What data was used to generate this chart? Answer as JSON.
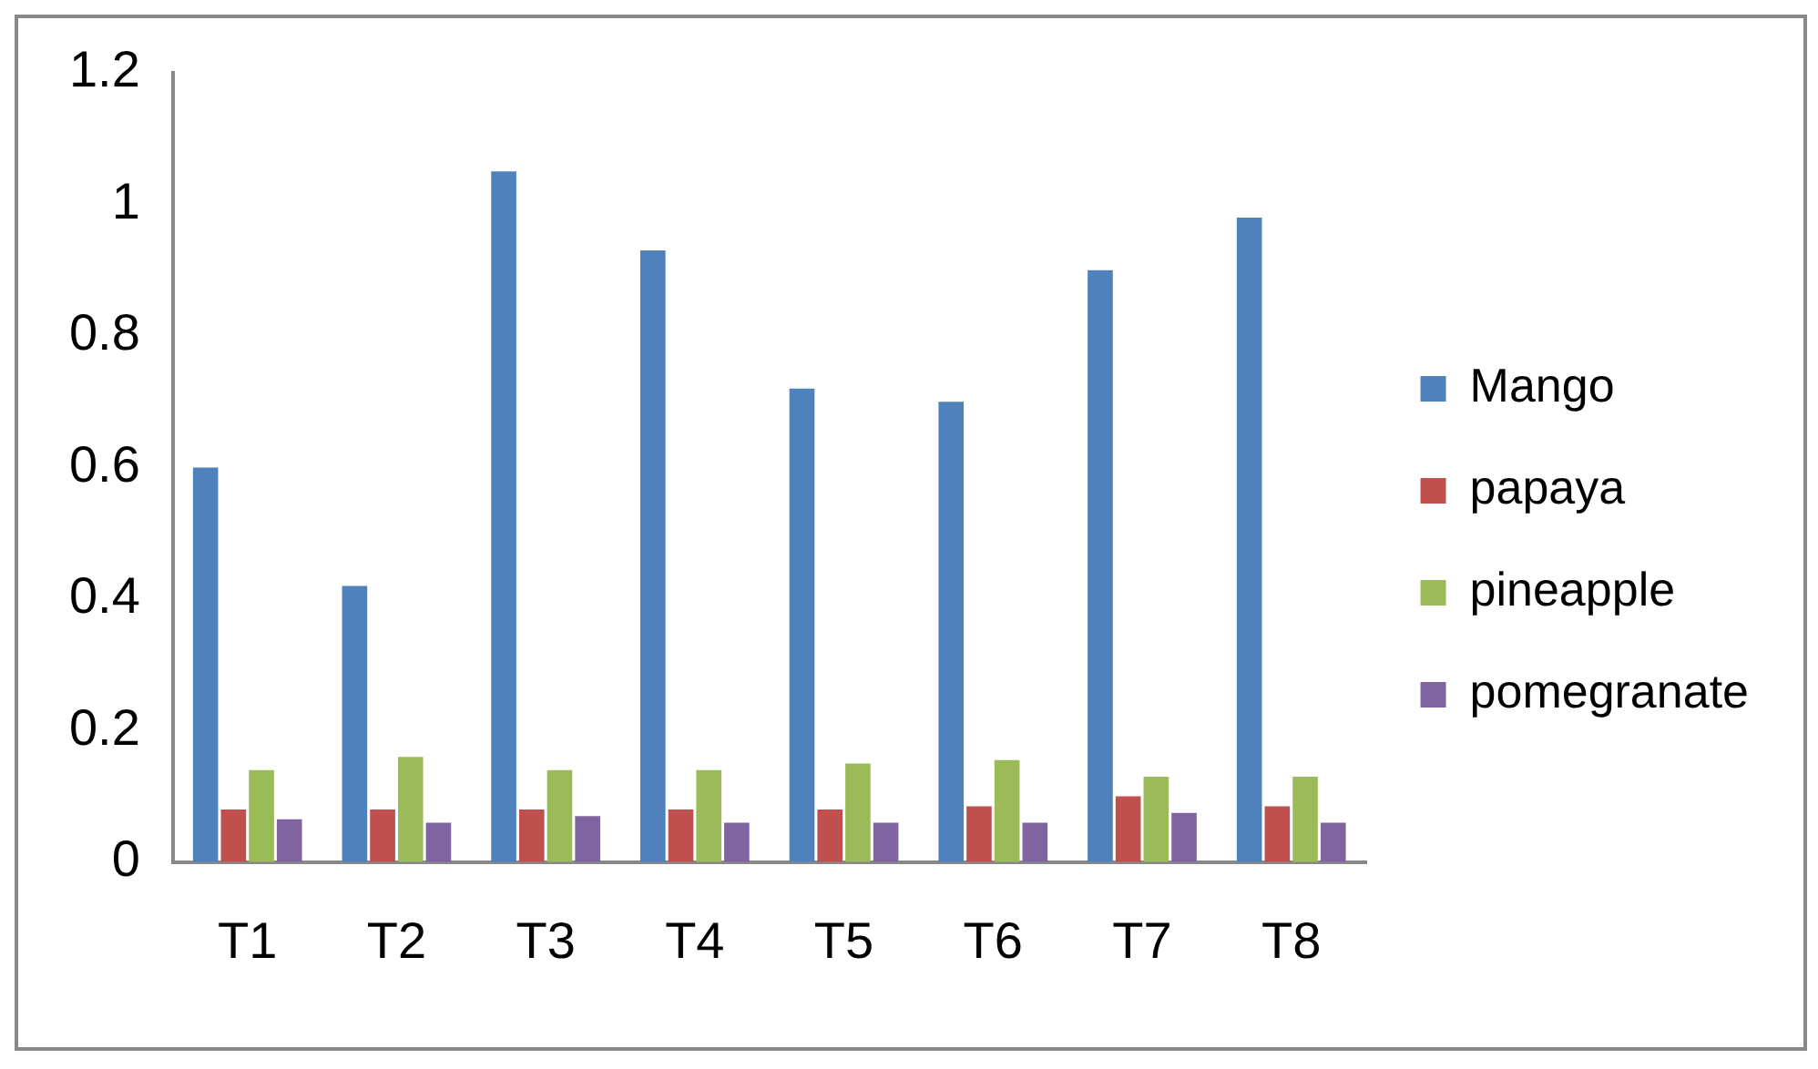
{
  "chart_data": {
    "type": "bar",
    "categories": [
      "T1",
      "T2",
      "T3",
      "T4",
      "T5",
      "T6",
      "T7",
      "T8"
    ],
    "series": [
      {
        "name": "Mango",
        "color": "#4f81bd",
        "values": [
          0.6,
          0.42,
          1.05,
          0.93,
          0.72,
          0.7,
          0.9,
          0.98
        ]
      },
      {
        "name": "papaya",
        "color": "#c0504d",
        "values": [
          0.08,
          0.08,
          0.08,
          0.08,
          0.08,
          0.085,
          0.1,
          0.085
        ]
      },
      {
        "name": "pineapple",
        "color": "#9bbb59",
        "values": [
          0.14,
          0.16,
          0.14,
          0.14,
          0.15,
          0.155,
          0.13,
          0.13
        ]
      },
      {
        "name": "pomegranate",
        "color": "#8064a2",
        "values": [
          0.065,
          0.06,
          0.07,
          0.06,
          0.06,
          0.06,
          0.075,
          0.06
        ]
      }
    ],
    "ylim": [
      0,
      1.2
    ],
    "yticks": [
      0,
      0.2,
      0.4,
      0.6,
      0.8,
      1,
      1.2
    ],
    "grid": false,
    "legend": "right"
  }
}
